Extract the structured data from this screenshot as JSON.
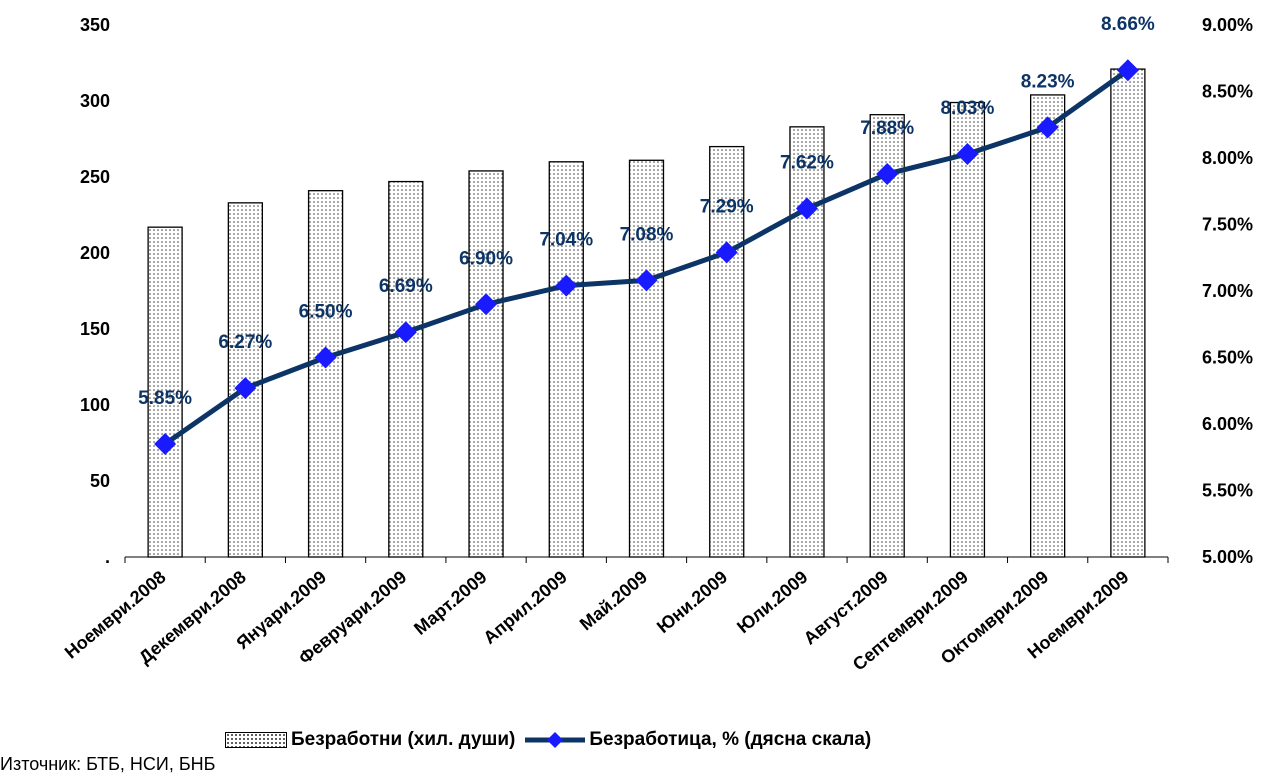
{
  "chart_data": {
    "type": "bar",
    "categories": [
      "Ноември.2008",
      "Декември.2008",
      "Януари.2009",
      "Февруари.2009",
      "Март.2009",
      "Април.2009",
      "Май.2009",
      "Юни.2009",
      "Юли.2009",
      "Август.2009",
      "Септември.2009",
      "Октомври.2009",
      "Ноември.2009"
    ],
    "series": [
      {
        "name": "Безработни (хил. души)",
        "type": "bar",
        "axis": "left",
        "values": [
          217,
          233,
          241,
          247,
          254,
          260,
          261,
          270,
          283,
          291,
          299,
          304,
          321
        ]
      },
      {
        "name": "Безработица, % (дясна скала)",
        "type": "line",
        "axis": "right",
        "values": [
          5.85,
          6.27,
          6.5,
          6.69,
          6.9,
          7.04,
          7.08,
          7.29,
          7.62,
          7.88,
          8.03,
          8.23,
          8.66
        ],
        "data_labels": [
          "5.85%",
          "6.27%",
          "6.50%",
          "6.69%",
          "6.90%",
          "7.04%",
          "7.08%",
          "7.29%",
          "7.62%",
          "7.88%",
          "8.03%",
          "8.23%",
          "8.66%"
        ]
      }
    ],
    "left_axis": {
      "ylim": [
        0,
        350
      ],
      "ticks": [
        0,
        50,
        100,
        150,
        200,
        250,
        300,
        350
      ],
      "tick_labels": [
        ".",
        "50",
        "100",
        "150",
        "200",
        "250",
        "300",
        "350"
      ]
    },
    "right_axis": {
      "ylim": [
        5.0,
        9.0
      ],
      "ticks": [
        5.0,
        5.5,
        6.0,
        6.5,
        7.0,
        7.5,
        8.0,
        8.5,
        9.0
      ],
      "tick_labels": [
        "5.00%",
        "5.50%",
        "6.00%",
        "6.50%",
        "7.00%",
        "7.50%",
        "8.00%",
        "8.50%",
        "9.00%"
      ]
    },
    "grid": false,
    "legend_position": "bottom",
    "colors": {
      "line": "#0d3466",
      "marker": "#1a1aff",
      "bar_border": "#000000",
      "bar_pattern": "dotted"
    }
  },
  "source_text": "Източник:  БТБ, НСИ, БНБ"
}
